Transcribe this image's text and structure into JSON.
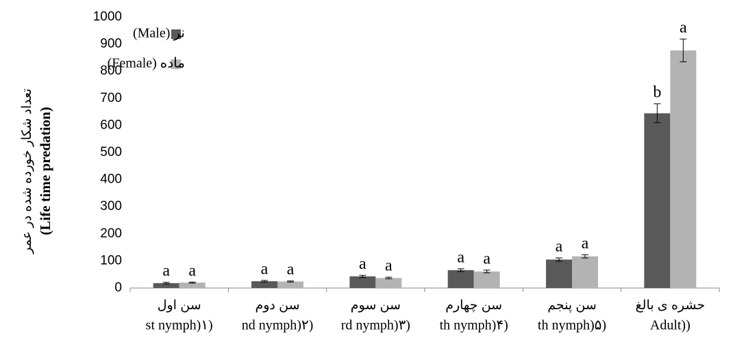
{
  "chart_data": {
    "type": "bar",
    "y_label": [
      "تعداد شکار خورده شده در عمر",
      "(Life time predation)"
    ],
    "categories": [
      [
        "سن اول",
        "st nymph)۱)"
      ],
      [
        "سن دوم",
        "nd nymph)۲)"
      ],
      [
        "سن سوم",
        "rd nymph)۳)"
      ],
      [
        "سن چهارم",
        "th nymph)۴)"
      ],
      [
        "سن پنجم",
        "th nymph)۵)"
      ],
      [
        "حشره ی بالغ",
        "Adult))"
      ]
    ],
    "series": [
      {
        "name": "نر (Male)",
        "color": "#595959",
        "values": [
          18,
          25,
          43,
          66,
          105,
          645
        ],
        "errors": [
          3,
          3,
          4,
          5,
          6,
          35
        ],
        "letters": [
          "a",
          "a",
          "a",
          "a",
          "a",
          "b"
        ]
      },
      {
        "name": "ماده (Female)",
        "color": "#b3b3b3",
        "values": [
          20,
          24,
          37,
          61,
          117,
          877
        ],
        "errors": [
          2,
          2,
          3,
          5,
          6,
          42
        ],
        "letters": [
          "a",
          "a",
          "a",
          "a",
          "a",
          "a"
        ]
      }
    ],
    "ylim": [
      0,
      1000
    ],
    "yticks": [
      0,
      100,
      200,
      300,
      400,
      500,
      600,
      700,
      800,
      900,
      1000
    ],
    "grid": false,
    "legend": "upper left"
  }
}
